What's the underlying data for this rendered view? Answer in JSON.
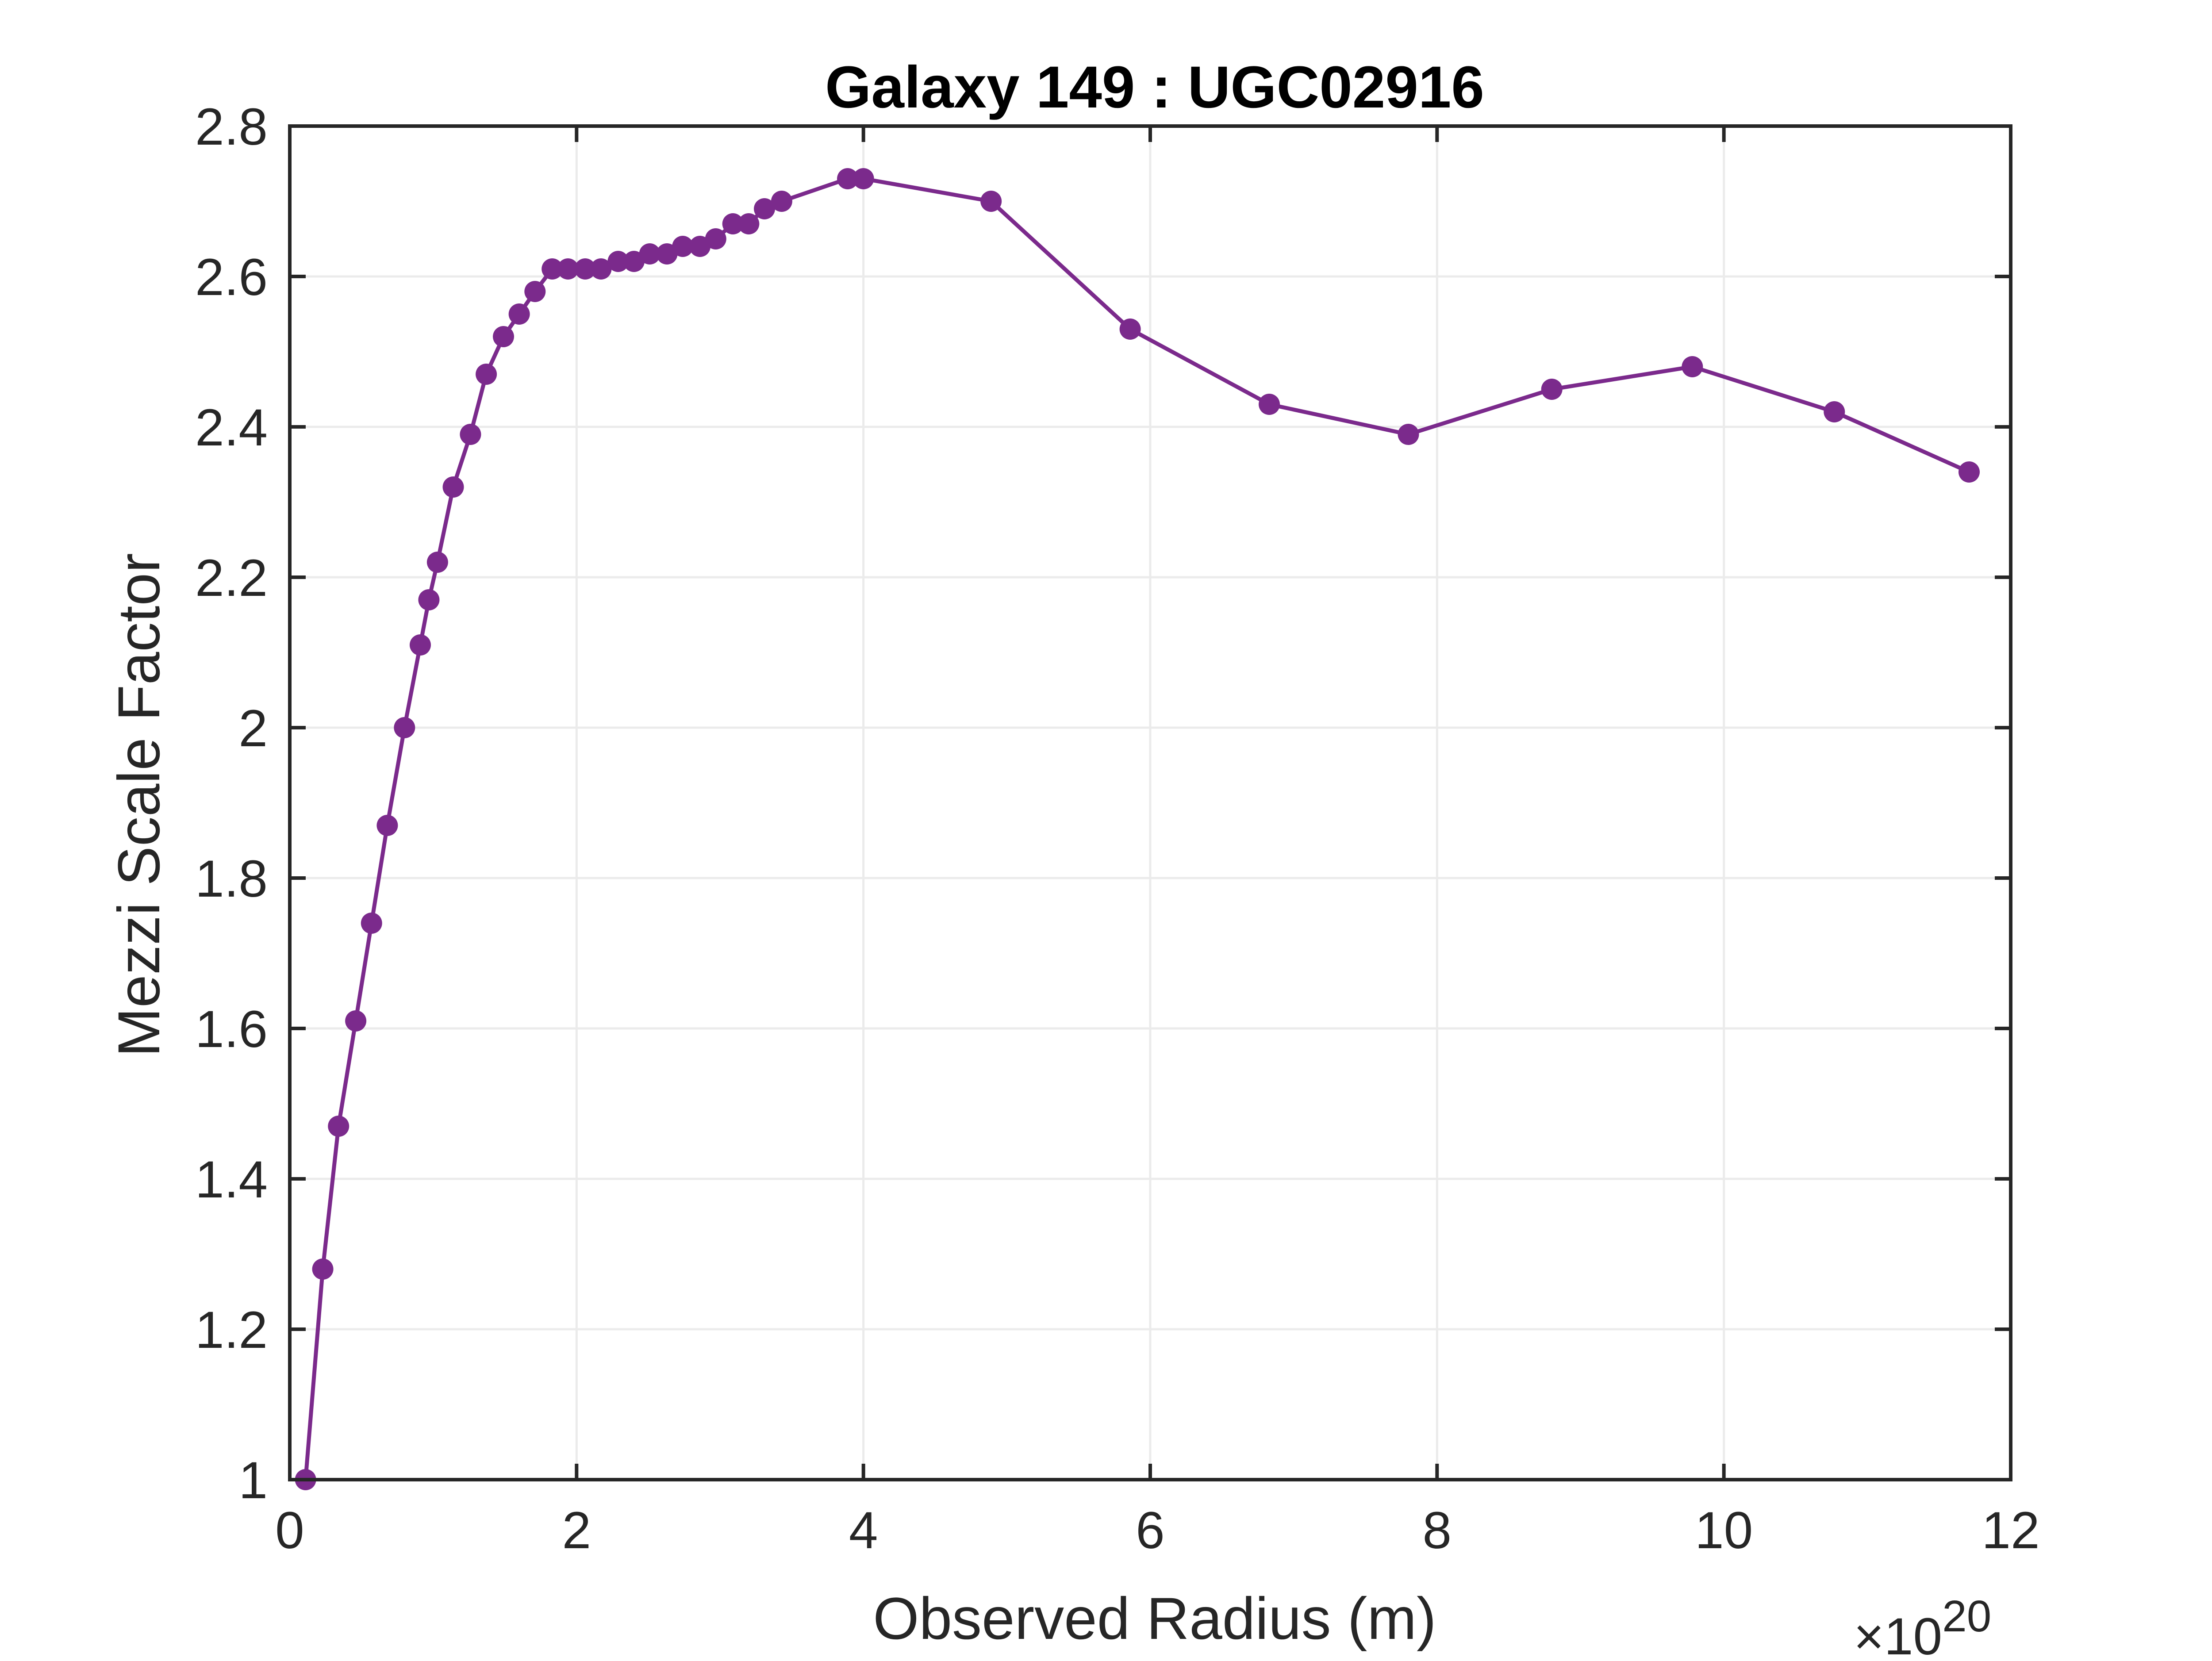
{
  "chart_data": {
    "type": "line",
    "title": "Galaxy 149 : UGC02916",
    "xlabel": "Observed Radius (m)",
    "ylabel": "Mezzi Scale Factor",
    "x_exponent_base": "×10",
    "x_exponent_power": "20",
    "xlim": [
      0,
      12
    ],
    "ylim": [
      1,
      2.8
    ],
    "xticks": [
      0,
      2,
      4,
      6,
      8,
      10,
      12
    ],
    "xtick_labels": [
      "0",
      "2",
      "4",
      "6",
      "8",
      "10",
      "12"
    ],
    "yticks": [
      1,
      1.2,
      1.4,
      1.6,
      1.8,
      2,
      2.2,
      2.4,
      2.6,
      2.8
    ],
    "ytick_labels": [
      "1",
      "1.2",
      "1.4",
      "1.6",
      "1.8",
      "2",
      "2.2",
      "2.4",
      "2.6",
      "2.8"
    ],
    "grid": true,
    "colors": {
      "series": "#7b2a8c",
      "axes": "#262626",
      "grid": "#ebebeb"
    },
    "series": [
      {
        "x": [
          0.11,
          0.23,
          0.34,
          0.46,
          0.57,
          0.68,
          0.8,
          0.91,
          0.97,
          1.03,
          1.14,
          1.26,
          1.37,
          1.49,
          1.6,
          1.71,
          1.83,
          1.94,
          2.06,
          2.17,
          2.29,
          2.4,
          2.51,
          2.63,
          2.74,
          2.86,
          2.97,
          3.09,
          3.2,
          3.31,
          3.43,
          3.89,
          4.0,
          4.89,
          5.86,
          6.83,
          7.8,
          8.8,
          9.78,
          10.77,
          11.71
        ],
        "y": [
          1.0,
          1.28,
          1.47,
          1.61,
          1.74,
          1.87,
          2.0,
          2.11,
          2.17,
          2.22,
          2.32,
          2.39,
          2.47,
          2.52,
          2.55,
          2.58,
          2.61,
          2.61,
          2.61,
          2.61,
          2.62,
          2.62,
          2.63,
          2.63,
          2.64,
          2.64,
          2.65,
          2.67,
          2.67,
          2.69,
          2.7,
          2.73,
          2.73,
          2.7,
          2.53,
          2.43,
          2.39,
          2.45,
          2.48,
          2.42,
          2.34
        ]
      }
    ]
  }
}
